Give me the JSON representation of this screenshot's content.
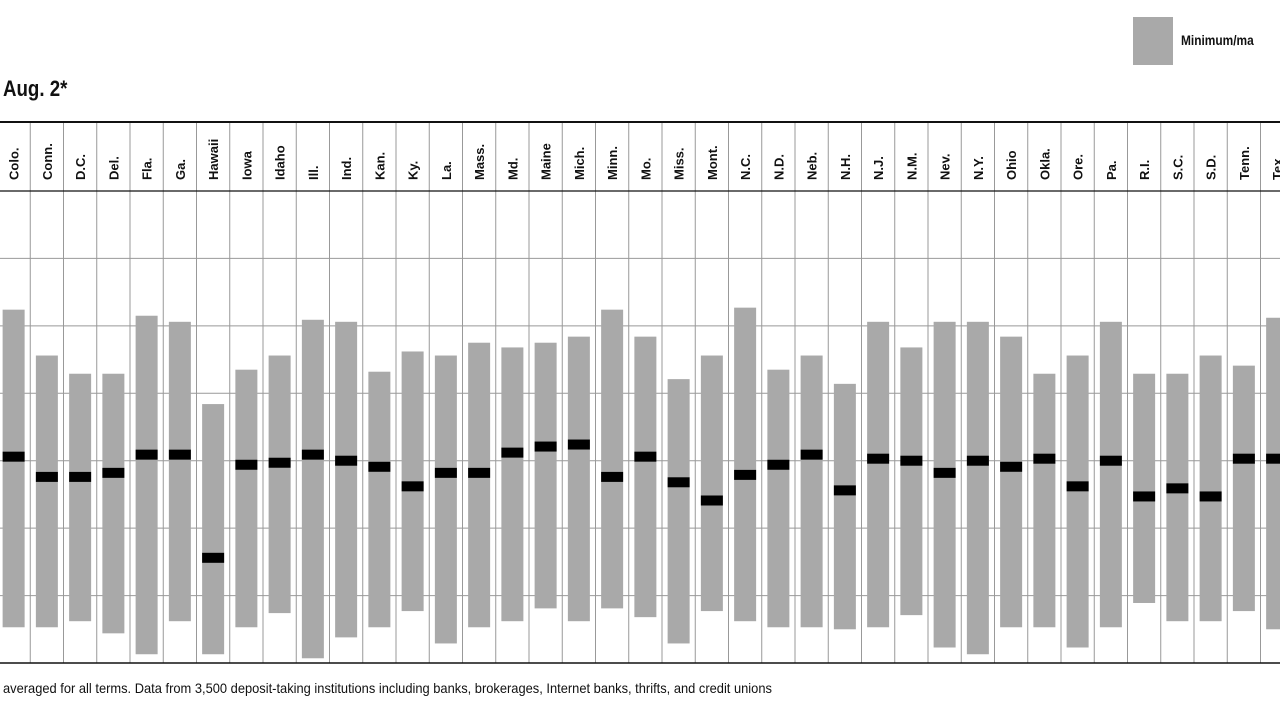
{
  "legend": {
    "range_label": "Minimum/ma",
    "range_color": "#a9a9a9",
    "average_color": "#000000"
  },
  "header": {
    "subtitle": "Aug. 2*"
  },
  "footnote": "averaged for all terms. Data from 3,500 deposit-taking institutions including banks, brokerages, Internet banks, thrifts, and credit unions",
  "chart_data": {
    "type": "range_bar",
    "categories": [
      "Colo.",
      "Conn.",
      "D.C.",
      "Del.",
      "Fla.",
      "Ga.",
      "Hawaii",
      "Iowa",
      "Idaho",
      "Ill.",
      "Ind.",
      "Kan.",
      "Ky.",
      "La.",
      "Mass.",
      "Md.",
      "Maine",
      "Mich.",
      "Minn.",
      "Mo.",
      "Miss.",
      "Mont.",
      "N.C.",
      "N.D.",
      "Neb.",
      "N.H.",
      "N.J.",
      "N.M.",
      "Nev.",
      "N.Y.",
      "Ohio",
      "Okla.",
      "Ore.",
      "Pa.",
      "R.I.",
      "S.C.",
      "S.D.",
      "Tenn.",
      "Tex."
    ],
    "ylim": [
      0,
      7
    ],
    "grid": true,
    "series": [
      {
        "name": "Minimum/ma",
        "min": [
          0.53,
          0.53,
          0.62,
          0.44,
          0.13,
          0.62,
          0.13,
          0.53,
          0.74,
          0.07,
          0.38,
          0.53,
          0.77,
          0.29,
          0.53,
          0.62,
          0.81,
          0.62,
          0.81,
          0.68,
          0.29,
          0.77,
          0.62,
          0.53,
          0.53,
          0.5,
          0.53,
          0.71,
          0.23,
          0.13,
          0.53,
          0.53,
          0.23,
          0.53,
          0.89,
          0.62,
          0.62,
          0.77,
          0.5
        ],
        "max": [
          5.24,
          4.56,
          4.29,
          4.29,
          5.15,
          5.06,
          3.84,
          4.35,
          4.56,
          5.09,
          5.06,
          4.32,
          4.62,
          4.56,
          4.75,
          4.68,
          4.75,
          4.84,
          5.24,
          4.84,
          4.21,
          4.56,
          5.27,
          4.35,
          4.56,
          4.14,
          5.06,
          4.68,
          5.06,
          5.06,
          4.84,
          4.29,
          4.56,
          5.06,
          4.29,
          4.29,
          4.56,
          4.41,
          5.12
        ]
      },
      {
        "name": "Average",
        "values": [
          3.06,
          2.76,
          2.76,
          2.82,
          3.09,
          3.09,
          1.56,
          2.94,
          2.97,
          3.09,
          3.0,
          2.91,
          2.62,
          2.82,
          2.82,
          3.12,
          3.21,
          3.24,
          2.76,
          3.06,
          2.68,
          2.41,
          2.79,
          2.94,
          3.09,
          2.56,
          3.03,
          3.0,
          2.82,
          3.0,
          2.91,
          3.03,
          2.62,
          3.0,
          2.47,
          2.59,
          2.47,
          3.03,
          3.03
        ]
      }
    ]
  }
}
